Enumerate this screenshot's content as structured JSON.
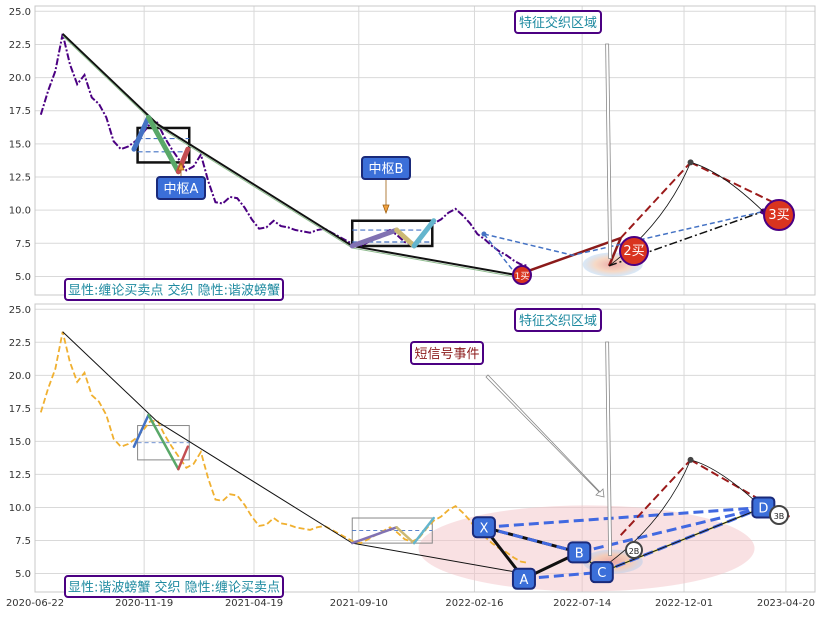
{
  "chart_data": [
    {
      "type": "line",
      "title": "",
      "xlabel": "",
      "ylabel": "",
      "x_range": [
        "2020-06-22",
        "2023-05-30"
      ],
      "ylim": [
        3.6,
        25.4
      ],
      "yticks": [
        "5.0",
        "7.5",
        "10.0",
        "12.5",
        "15.0",
        "17.5",
        "20.0",
        "22.5",
        "25.0"
      ],
      "grid": true,
      "series": [
        {
          "name": "",
          "style": "dash-dot",
          "color": "#4b0082",
          "x": [
            "2020-06-30",
            "2020-07-10",
            "2020-07-20",
            "2020-07-30",
            "2020-08-09",
            "2020-08-19",
            "2020-08-29",
            "2020-09-08",
            "2020-09-18",
            "2020-09-28",
            "2020-10-08",
            "2020-10-18",
            "2020-10-28",
            "2020-11-07",
            "2020-11-17",
            "2020-11-27",
            "2020-12-07",
            "2020-12-17",
            "2020-12-27",
            "2021-01-06",
            "2021-01-16",
            "2021-01-26",
            "2021-02-05",
            "2021-02-15",
            "2021-02-25",
            "2021-03-07",
            "2021-03-17",
            "2021-03-27",
            "2021-04-06",
            "2021-04-16",
            "2021-04-26",
            "2021-05-06",
            "2021-05-16",
            "2021-05-26",
            "2021-06-05",
            "2021-06-15",
            "2021-06-25",
            "2021-07-05",
            "2021-07-15",
            "2021-07-25",
            "2021-08-04",
            "2021-08-14",
            "2021-08-24",
            "2021-09-03",
            "2021-09-13",
            "2021-09-23",
            "2021-10-03",
            "2021-10-13",
            "2021-10-23",
            "2021-11-02",
            "2021-11-12",
            "2021-11-22",
            "2021-12-02",
            "2021-12-12",
            "2021-12-22",
            "2022-01-01",
            "2022-01-11",
            "2022-01-21",
            "2022-01-31",
            "2022-02-10",
            "2022-02-20",
            "2022-03-02",
            "2022-03-12",
            "2022-03-22",
            "2022-04-01",
            "2022-04-11",
            "2022-04-21",
            "2022-05-01"
          ],
          "y": [
            17.2,
            19.0,
            20.5,
            23.3,
            21.0,
            19.5,
            20.2,
            18.5,
            18.0,
            17.0,
            15.2,
            14.6,
            14.8,
            15.2,
            15.8,
            16.5,
            16.6,
            15.5,
            14.6,
            13.8,
            13.0,
            13.3,
            14.2,
            12.2,
            10.6,
            10.5,
            11.0,
            10.9,
            10.2,
            9.3,
            8.6,
            8.7,
            9.2,
            8.8,
            8.7,
            8.5,
            8.4,
            8.3,
            8.5,
            8.6,
            8.3,
            8.0,
            7.7,
            7.4,
            7.3,
            7.6,
            7.9,
            8.2,
            8.5,
            8.1,
            7.6,
            7.4,
            7.7,
            8.4,
            9.0,
            9.3,
            9.8,
            10.1,
            9.6,
            9.0,
            8.2,
            7.8,
            7.3,
            6.9,
            6.6,
            6.2,
            5.9,
            5.8
          ]
        }
      ],
      "bi_lines": {
        "x": [
          "2020-07-30",
          "2020-12-07",
          "2021-09-01",
          "2022-04-15",
          "2022-07-01",
          "2022-08-20",
          "2022-12-10",
          "2023-03-20"
        ],
        "y": [
          23.3,
          16.5,
          7.3,
          5.1,
          6.6,
          5.8,
          13.6,
          9.9
        ]
      },
      "zhongshu": [
        {
          "label": "中枢A",
          "x": [
            "2020-11-10",
            "2021-01-20"
          ],
          "y": [
            13.6,
            16.2
          ],
          "mid": [
            14.4,
            15.4
          ]
        },
        {
          "label": "中枢B",
          "x": [
            "2021-09-01",
            "2021-12-20"
          ],
          "y": [
            7.3,
            9.2
          ],
          "mid": [
            7.6,
            8.5
          ]
        }
      ],
      "annotations": [
        "中枢A",
        "中枢B",
        "特征交织区域",
        "1买",
        "2买",
        "3买"
      ],
      "legend_box": "显性:缠论买卖点 交织 隐性:谐波螃蟹"
    },
    {
      "type": "line",
      "title": "",
      "xlabel": "",
      "ylabel": "",
      "x_range": [
        "2020-06-22",
        "2023-05-30"
      ],
      "ylim": [
        3.6,
        25.4
      ],
      "xticks": [
        "2020-06-22",
        "2020-11-19",
        "2021-04-19",
        "2021-09-10",
        "2022-02-16",
        "2022-07-14",
        "2022-12-01",
        "2023-04-20"
      ],
      "yticks": [
        "5.0",
        "7.5",
        "10.0",
        "12.5",
        "15.0",
        "17.5",
        "20.0",
        "22.5",
        "25.0"
      ],
      "grid": true,
      "series": [
        {
          "name": "",
          "style": "dash",
          "color": "#f0b030",
          "x": [
            "2020-06-30",
            "2020-07-10",
            "2020-07-20",
            "2020-07-30",
            "2020-08-09",
            "2020-08-19",
            "2020-08-29",
            "2020-09-08",
            "2020-09-18",
            "2020-09-28",
            "2020-10-08",
            "2020-10-18",
            "2020-10-28",
            "2020-11-07",
            "2020-11-17",
            "2020-11-27",
            "2020-12-07",
            "2020-12-17",
            "2020-12-27",
            "2021-01-06",
            "2021-01-16",
            "2021-01-26",
            "2021-02-05",
            "2021-02-15",
            "2021-02-25",
            "2021-03-07",
            "2021-03-17",
            "2021-03-27",
            "2021-04-06",
            "2021-04-16",
            "2021-04-26",
            "2021-05-06",
            "2021-05-16",
            "2021-05-26",
            "2021-06-05",
            "2021-06-15",
            "2021-06-25",
            "2021-07-05",
            "2021-07-15",
            "2021-07-25",
            "2021-08-04",
            "2021-08-14",
            "2021-08-24",
            "2021-09-03",
            "2021-09-13",
            "2021-09-23",
            "2021-10-03",
            "2021-10-13",
            "2021-10-23",
            "2021-11-02",
            "2021-11-12",
            "2021-11-22",
            "2021-12-02",
            "2021-12-12",
            "2021-12-22",
            "2022-01-01",
            "2022-01-11",
            "2022-01-21",
            "2022-01-31",
            "2022-02-10",
            "2022-02-20",
            "2022-03-02",
            "2022-03-12",
            "2022-03-22",
            "2022-04-01",
            "2022-04-11",
            "2022-04-21",
            "2022-05-01"
          ],
          "y": [
            17.2,
            19.0,
            20.5,
            23.3,
            21.0,
            19.5,
            20.2,
            18.5,
            18.0,
            17.0,
            15.2,
            14.6,
            14.8,
            15.2,
            15.8,
            16.5,
            16.6,
            15.5,
            14.6,
            13.8,
            13.0,
            13.3,
            14.2,
            12.2,
            10.6,
            10.5,
            11.0,
            10.9,
            10.2,
            9.3,
            8.6,
            8.7,
            9.2,
            8.8,
            8.7,
            8.5,
            8.4,
            8.3,
            8.5,
            8.6,
            8.3,
            8.0,
            7.7,
            7.4,
            7.3,
            7.6,
            7.9,
            8.2,
            8.5,
            8.1,
            7.6,
            7.4,
            7.7,
            8.4,
            9.0,
            9.3,
            9.8,
            10.1,
            9.6,
            9.0,
            8.2,
            7.8,
            7.3,
            6.9,
            6.6,
            6.2,
            5.9,
            5.8
          ]
        }
      ],
      "bi_lines": {
        "x": [
          "2020-07-30",
          "2020-12-07",
          "2021-09-01",
          "2022-04-15",
          "2022-07-01",
          "2022-08-20",
          "2022-12-10",
          "2023-03-20"
        ],
        "y": [
          23.3,
          16.5,
          7.3,
          5.1,
          6.6,
          5.8,
          13.6,
          9.9
        ]
      },
      "harmonic_points": [
        {
          "label": "X",
          "x": "2022-03-01",
          "y": 8.5
        },
        {
          "label": "A",
          "x": "2022-04-25",
          "y": 4.6
        },
        {
          "label": "B",
          "x": "2022-07-10",
          "y": 6.6
        },
        {
          "label": "C",
          "x": "2022-08-10",
          "y": 5.1
        },
        {
          "label": "D",
          "x": "2023-03-20",
          "y": 10.0
        }
      ],
      "annotations": [
        "特征交织区域",
        "短信号事件",
        "2B",
        "3B"
      ],
      "legend_box": "显性:谐波螃蟹 交织 隐性:缠论买卖点"
    }
  ]
}
